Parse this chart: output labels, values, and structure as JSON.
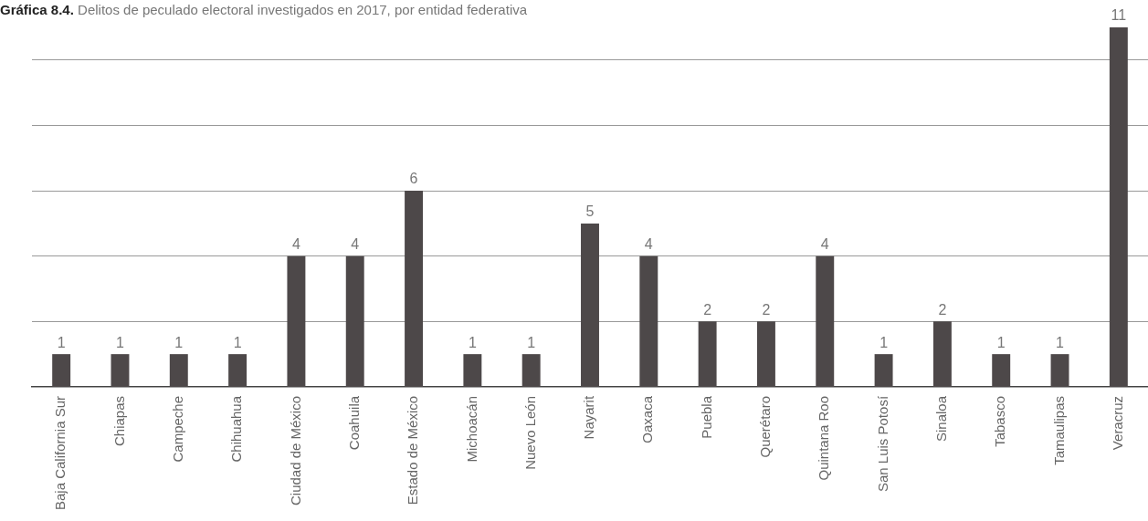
{
  "chart_data": {
    "type": "bar",
    "title": "Gráfica 8.4. Delitos de peculado electoral investigados en 2017, por entidad federativa",
    "categories": [
      "Baja California Sur",
      "Chiapas",
      "Campeche",
      "Chihuahua",
      "Ciudad de México",
      "Coahuila",
      "Estado de México",
      "Michoacán",
      "Nuevo León",
      "Nayarit",
      "Oaxaca",
      "Puebla",
      "Querétaro",
      "Quintana Roo",
      "San Luis Potosí",
      "Sinaloa",
      "Tabasco",
      "Tamaulipas",
      "Veracruz"
    ],
    "values": [
      1,
      1,
      1,
      1,
      4,
      4,
      6,
      1,
      1,
      5,
      4,
      2,
      2,
      4,
      1,
      2,
      1,
      1,
      11
    ],
    "color": "#4d4849",
    "ylim": [
      0,
      11
    ],
    "yticks": [
      {
        "value": 2,
        "label": null
      },
      {
        "value": 4,
        "label": null
      },
      {
        "value": 6,
        "label": null
      },
      {
        "value": 8,
        "label": null
      },
      {
        "value": 10,
        "label": null
      }
    ],
    "grid": "y",
    "data_labels": true,
    "tick_labels": "x"
  }
}
